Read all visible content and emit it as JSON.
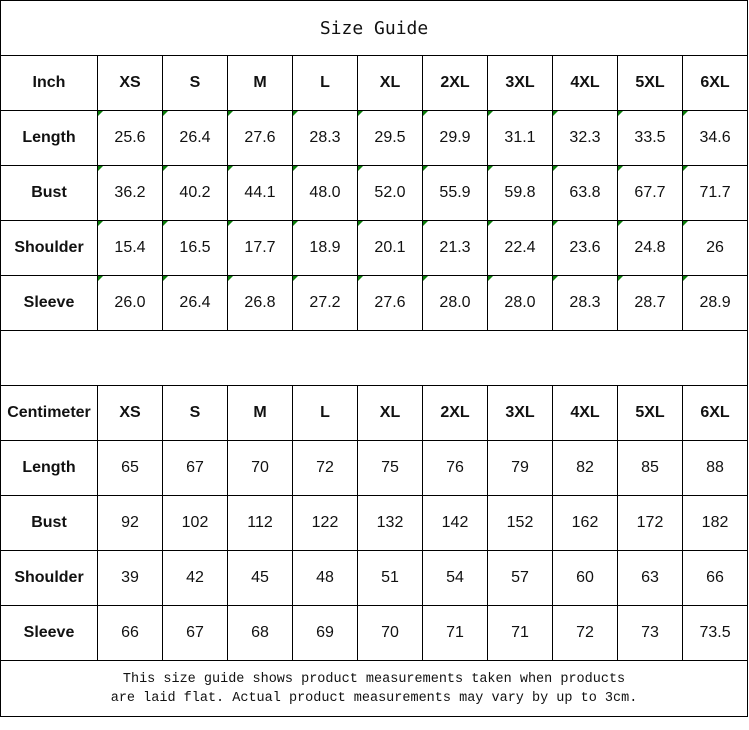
{
  "title": "Size Guide",
  "sizes": [
    "XS",
    "S",
    "M",
    "L",
    "XL",
    "2XL",
    "3XL",
    "4XL",
    "5XL",
    "6XL"
  ],
  "inch": {
    "unit_label": "Inch",
    "rows": [
      {
        "label": "Length",
        "values": [
          "25.6",
          "26.4",
          "27.6",
          "28.3",
          "29.5",
          "29.9",
          "31.1",
          "32.3",
          "33.5",
          "34.6"
        ]
      },
      {
        "label": "Bust",
        "values": [
          "36.2",
          "40.2",
          "44.1",
          "48.0",
          "52.0",
          "55.9",
          "59.8",
          "63.8",
          "67.7",
          "71.7"
        ]
      },
      {
        "label": "Shoulder",
        "values": [
          "15.4",
          "16.5",
          "17.7",
          "18.9",
          "20.1",
          "21.3",
          "22.4",
          "23.6",
          "24.8",
          "26"
        ]
      },
      {
        "label": "Sleeve",
        "values": [
          "26.0",
          "26.4",
          "26.8",
          "27.2",
          "27.6",
          "28.0",
          "28.0",
          "28.3",
          "28.7",
          "28.9"
        ]
      }
    ]
  },
  "centimeter": {
    "unit_label": "Centimeter",
    "rows": [
      {
        "label": "Length",
        "values": [
          "65",
          "67",
          "70",
          "72",
          "75",
          "76",
          "79",
          "82",
          "85",
          "88"
        ]
      },
      {
        "label": "Bust",
        "values": [
          "92",
          "102",
          "112",
          "122",
          "132",
          "142",
          "152",
          "162",
          "172",
          "182"
        ]
      },
      {
        "label": "Shoulder",
        "values": [
          "39",
          "42",
          "45",
          "48",
          "51",
          "54",
          "57",
          "60",
          "63",
          "66"
        ]
      },
      {
        "label": "Sleeve",
        "values": [
          "66",
          "67",
          "68",
          "69",
          "70",
          "71",
          "71",
          "72",
          "73",
          "73.5"
        ]
      }
    ]
  },
  "note": {
    "line1": "This size guide shows product measurements taken when products",
    "line2": "are laid flat. Actual product measurements may vary by up to 3cm."
  },
  "colors": {
    "cell_flag": "#0a7d0a",
    "border": "#000000"
  }
}
